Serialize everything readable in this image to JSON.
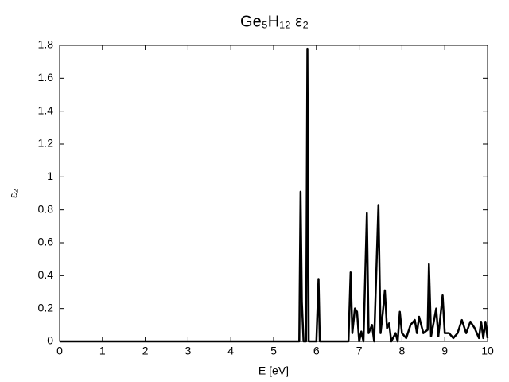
{
  "chart_data": {
    "type": "line",
    "title": "Ge₅H₁₂ ε₂",
    "x_label": "E [eV]",
    "y_label": "ε₂",
    "x": [
      0,
      5.55,
      5.6,
      5.63,
      5.66,
      5.7,
      5.76,
      5.79,
      5.82,
      6.0,
      6.05,
      6.08,
      6.75,
      6.8,
      6.84,
      6.9,
      6.95,
      7.0,
      7.05,
      7.1,
      7.18,
      7.22,
      7.3,
      7.35,
      7.45,
      7.5,
      7.55,
      7.6,
      7.65,
      7.7,
      7.75,
      7.85,
      7.9,
      7.95,
      8.0,
      8.1,
      8.2,
      8.3,
      8.35,
      8.4,
      8.5,
      8.6,
      8.63,
      8.68,
      8.8,
      8.85,
      8.95,
      9.0,
      9.1,
      9.2,
      9.3,
      9.4,
      9.5,
      9.6,
      9.7,
      9.8,
      9.85,
      9.9,
      9.95,
      10
    ],
    "values": [
      0,
      0,
      0,
      0.91,
      0.24,
      0,
      0,
      1.78,
      0,
      0,
      0.38,
      0,
      0,
      0.42,
      0.05,
      0.2,
      0.18,
      0,
      0.06,
      0,
      0.78,
      0.05,
      0.1,
      0,
      0.83,
      0.05,
      0.17,
      0.31,
      0.08,
      0.11,
      0,
      0.05,
      0,
      0.18,
      0.05,
      0.02,
      0.1,
      0.13,
      0.05,
      0.15,
      0.05,
      0.07,
      0.47,
      0.03,
      0.2,
      0.03,
      0.28,
      0.05,
      0.05,
      0.02,
      0.05,
      0.13,
      0.05,
      0.12,
      0.08,
      0.02,
      0.12,
      0.02,
      0.12,
      0.02
    ],
    "color": "#000000",
    "xlim": [
      0,
      10
    ],
    "xticks": [
      0,
      1,
      2,
      3,
      4,
      5,
      6,
      7,
      8,
      9,
      10
    ],
    "ylim": [
      0,
      1.8
    ],
    "yticks": [
      0,
      0.2,
      0.4,
      0.6,
      0.8,
      1,
      1.2,
      1.4,
      1.6,
      1.8
    ],
    "grid": false
  }
}
